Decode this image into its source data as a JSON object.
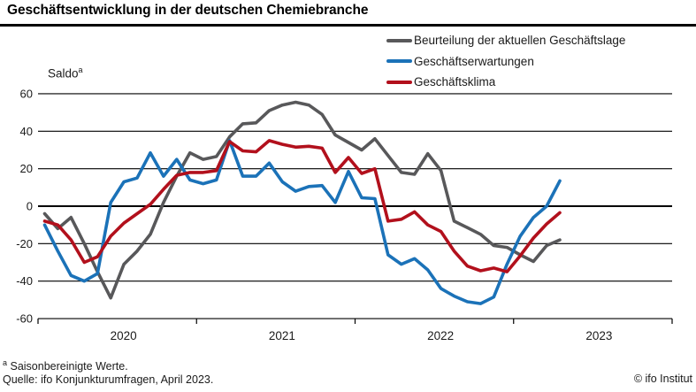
{
  "title": "Geschäftsentwicklung in der deutschen Chemiebranche",
  "saldo_label": {
    "text": "Saldo",
    "sup": "a"
  },
  "footnotes": {
    "note_sup": "a",
    "note_text": " Saisonbereinigte Werte.",
    "source": "Quelle: ifo Konjunkturumfragen, April 2023.",
    "copyright": "© ifo Institut"
  },
  "chart_data": {
    "type": "line",
    "frequency": "monthly",
    "x_start": "2020-01",
    "x_end": "2023-04",
    "x_tick_years": [
      "2020",
      "2021",
      "2022",
      "2023"
    ],
    "ylabel": "Saldo",
    "ylim": [
      -60,
      60
    ],
    "y_ticks": [
      60,
      40,
      20,
      0,
      -20,
      -40,
      -60
    ],
    "grid": true,
    "legend_position": "top-right",
    "series": [
      {
        "name": "Beurteilung der aktuellen Geschäftslage",
        "color": "#58585a",
        "values": [
          -4,
          -12,
          -6,
          -20,
          -35,
          -49,
          -31,
          -24,
          -15,
          2,
          16,
          28.5,
          25,
          26.5,
          37,
          44,
          44.5,
          51,
          54,
          55.5,
          54,
          49,
          38,
          34,
          30,
          36,
          27,
          18,
          17,
          28,
          19,
          -8,
          -11.5,
          -15,
          -21,
          -22,
          -26,
          -29.5,
          -21,
          -18
        ]
      },
      {
        "name": "Geschäftserwartungen",
        "color": "#1b72b8",
        "values": [
          -10,
          -24,
          -37,
          -40,
          -36,
          2,
          13,
          15,
          28.5,
          16,
          25,
          14,
          12,
          14,
          35,
          16,
          16,
          23,
          13,
          8,
          10.5,
          11,
          2,
          18.5,
          4.5,
          4,
          -26,
          -31,
          -28,
          -34,
          -44,
          -48,
          -51,
          -52,
          -48.5,
          -31,
          -16,
          -6,
          0,
          13.5
        ]
      },
      {
        "name": "Geschäftsklima",
        "color": "#b2101c",
        "values": [
          -8,
          -10,
          -18,
          -30,
          -27,
          -16,
          -9,
          -4,
          1,
          9,
          16.5,
          18,
          18,
          19,
          34.5,
          29.5,
          29,
          35,
          33,
          31.5,
          32,
          31,
          18,
          26,
          17.5,
          20,
          -8,
          -7,
          -3,
          -10,
          -13.5,
          -24,
          -32,
          -34.5,
          -33,
          -35,
          -26.5,
          -17,
          -9.5,
          -3.5
        ]
      }
    ]
  }
}
